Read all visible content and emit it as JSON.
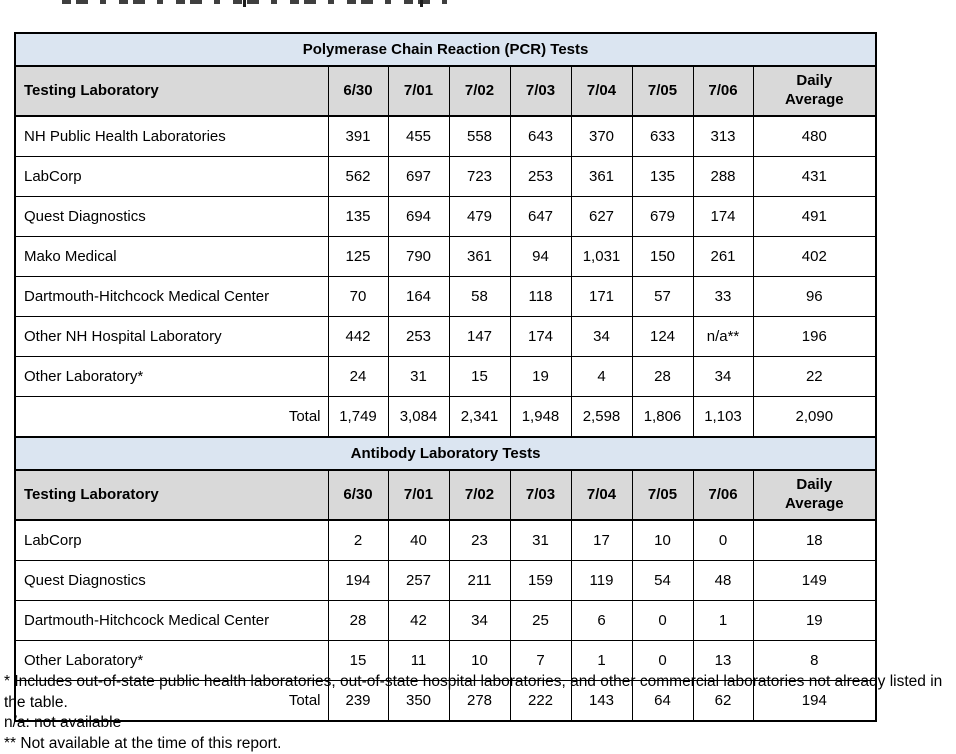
{
  "colors": {
    "title_band": "#dbe5f1",
    "header_band": "#d9d9d9",
    "border": "#000000",
    "text": "#000000",
    "page_background": "#ffffff"
  },
  "columns": [
    "Testing Laboratory",
    "6/30",
    "7/01",
    "7/02",
    "7/03",
    "7/04",
    "7/05",
    "7/06",
    "Daily\nAverage"
  ],
  "tables": [
    {
      "title": "Polymerase Chain Reaction (PCR) Tests",
      "rows": [
        {
          "lab": "NH Public Health Laboratories",
          "values": [
            "391",
            "455",
            "558",
            "643",
            "370",
            "633",
            "313",
            "480"
          ]
        },
        {
          "lab": "LabCorp",
          "values": [
            "562",
            "697",
            "723",
            "253",
            "361",
            "135",
            "288",
            "431"
          ]
        },
        {
          "lab": "Quest Diagnostics",
          "values": [
            "135",
            "694",
            "479",
            "647",
            "627",
            "679",
            "174",
            "491"
          ]
        },
        {
          "lab": "Mako Medical",
          "values": [
            "125",
            "790",
            "361",
            "94",
            "1,031",
            "150",
            "261",
            "402"
          ]
        },
        {
          "lab": "Dartmouth-Hitchcock Medical Center",
          "values": [
            "70",
            "164",
            "58",
            "118",
            "171",
            "57",
            "33",
            "96"
          ]
        },
        {
          "lab": "Other NH Hospital Laboratory",
          "values": [
            "442",
            "253",
            "147",
            "174",
            "34",
            "124",
            "n/a**",
            "196"
          ]
        },
        {
          "lab": "Other Laboratory*",
          "values": [
            "24",
            "31",
            "15",
            "19",
            "4",
            "28",
            "34",
            "22"
          ]
        }
      ],
      "total_label": "Total",
      "total_values": [
        "1,749",
        "3,084",
        "2,341",
        "1,948",
        "2,598",
        "1,806",
        "1,103",
        "2,090"
      ]
    },
    {
      "title": "Antibody Laboratory Tests",
      "rows": [
        {
          "lab": "LabCorp",
          "values": [
            "2",
            "40",
            "23",
            "31",
            "17",
            "10",
            "0",
            "18"
          ]
        },
        {
          "lab": "Quest Diagnostics",
          "values": [
            "194",
            "257",
            "211",
            "159",
            "119",
            "54",
            "48",
            "149"
          ]
        },
        {
          "lab": "Dartmouth-Hitchcock Medical Center",
          "values": [
            "28",
            "42",
            "34",
            "25",
            "6",
            "0",
            "1",
            "19"
          ]
        },
        {
          "lab": "Other Laboratory*",
          "values": [
            "15",
            "11",
            "10",
            "7",
            "1",
            "0",
            "13",
            "8"
          ]
        }
      ],
      "total_label": "Total",
      "total_values": [
        "239",
        "350",
        "278",
        "222",
        "143",
        "64",
        "62",
        "194"
      ]
    }
  ],
  "footnotes": [
    "* Includes out-of-state public health laboratories, out-of-state hospital laboratories, and other commercial laboratories not already listed in the table.",
    "n/a: not available",
    "** Not available at the time of this report."
  ]
}
